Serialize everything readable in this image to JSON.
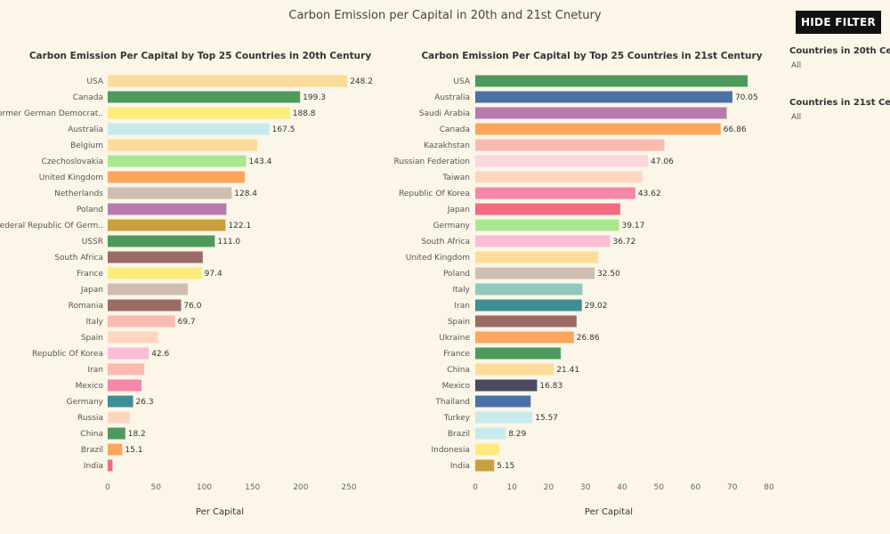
{
  "page": {
    "title": "Carbon Emission per Capital in 20th and 21st Cnetury",
    "hide_filter_label": "HIDE FILTER"
  },
  "filters": [
    {
      "label": "Countries in 20th Cen",
      "value": "All"
    },
    {
      "label": "Countries in 21st Cen",
      "value": "All"
    }
  ],
  "chart_data": [
    {
      "type": "bar",
      "orientation": "horizontal",
      "title": "Carbon Emission Per Capital by Top 25 Countries in 20th Century",
      "xlabel": "Per Capital",
      "xlim": [
        0,
        260
      ],
      "ticks": [
        0,
        50,
        100,
        150,
        200,
        250
      ],
      "categories": [
        "USA",
        "Canada",
        "Former German Democrat..",
        "Australia",
        "Belgium",
        "Czechoslovakia",
        "United Kingdom",
        "Netherlands",
        "Poland",
        "Federal Republic Of Germ..",
        "USSR",
        "South Africa",
        "France",
        "Japan",
        "Romania",
        "Italy",
        "Spain",
        "Republic Of Korea",
        "Iran",
        "Mexico",
        "Germany",
        "Russia",
        "China",
        "Brazil",
        "India"
      ],
      "values": [
        248.2,
        199.3,
        188.8,
        167.5,
        155,
        143.4,
        142,
        128.4,
        123,
        122.1,
        111.0,
        98.5,
        97.4,
        83,
        76.0,
        69.7,
        52,
        42.6,
        38,
        35,
        26.3,
        23,
        18.2,
        15.1,
        5
      ],
      "value_labels": [
        "248.2",
        "199.3",
        "188.8",
        "167.5",
        "",
        "143.4",
        "",
        "128.4",
        "",
        "122.1",
        "111.0",
        "",
        "97.4",
        "",
        "76.0",
        "69.7",
        "",
        "42.6",
        "",
        "",
        "26.3",
        "",
        "18.2",
        "15.1",
        ""
      ],
      "colors": [
        "#fddc9a",
        "#4e9a5c",
        "#fcec7c",
        "#c7eaec",
        "#fddc9a",
        "#a8e890",
        "#fba65c",
        "#d0bdb2",
        "#b87aae",
        "#c9a03e",
        "#4e9a5c",
        "#9a6a65",
        "#fcec7c",
        "#d0bdb2",
        "#9a6a65",
        "#fbbab0",
        "#fdd6c0",
        "#fbbcd6",
        "#fbbab0",
        "#f587a8",
        "#3e8e93",
        "#fdd6c0",
        "#4e9a5c",
        "#fba65c",
        "#f26b80"
      ]
    },
    {
      "type": "bar",
      "orientation": "horizontal",
      "title": "Carbon Emission Per Capital by Top 25 Countries in 21st Century",
      "xlabel": "Per Capital",
      "xlim": [
        0,
        80
      ],
      "ticks": [
        0,
        10,
        20,
        30,
        40,
        50,
        60,
        70,
        80
      ],
      "categories": [
        "USA",
        "Australia",
        "Saudi Arabia",
        "Canada",
        "Kazakhstan",
        "Russian Federation",
        "Taiwan",
        "Republic Of Korea",
        "Japan",
        "Germany",
        "South Africa",
        "United Kingdom",
        "Poland",
        "Italy",
        "Iran",
        "Spain",
        "Ukraine",
        "France",
        "China",
        "Mexico",
        "Thailand",
        "Turkey",
        "Brazil",
        "Indonesia",
        "India"
      ],
      "values": [
        74.2,
        70.05,
        68.5,
        66.86,
        51.5,
        47.06,
        45.5,
        43.62,
        39.5,
        39.17,
        36.72,
        33.5,
        32.5,
        29.2,
        29.02,
        27.6,
        26.86,
        23.3,
        21.41,
        16.83,
        15.1,
        15.57,
        8.29,
        6.5,
        5.15
      ],
      "value_labels": [
        "",
        "70.05",
        "",
        "66.86",
        "",
        "47.06",
        "",
        "43.62",
        "",
        "39.17",
        "36.72",
        "",
        "32.50",
        "",
        "29.02",
        "",
        "26.86",
        "",
        "21.41",
        "16.83",
        "",
        "15.57",
        "8.29",
        "",
        "5.15"
      ],
      "colors": [
        "#4e9a5c",
        "#4a72a8",
        "#b87aae",
        "#fba65c",
        "#fbbab0",
        "#fcd6dc",
        "#fdd6c0",
        "#f587a8",
        "#f26b80",
        "#a8e890",
        "#fbbcd6",
        "#fddc9a",
        "#d0bdb2",
        "#8ec9bb",
        "#3e8e93",
        "#9a6a65",
        "#fba65c",
        "#4e9a5c",
        "#fddc9a",
        "#4a4a60",
        "#4a72a8",
        "#c7eaec",
        "#c7eaec",
        "#fcec7c",
        "#c9a03e"
      ]
    }
  ]
}
